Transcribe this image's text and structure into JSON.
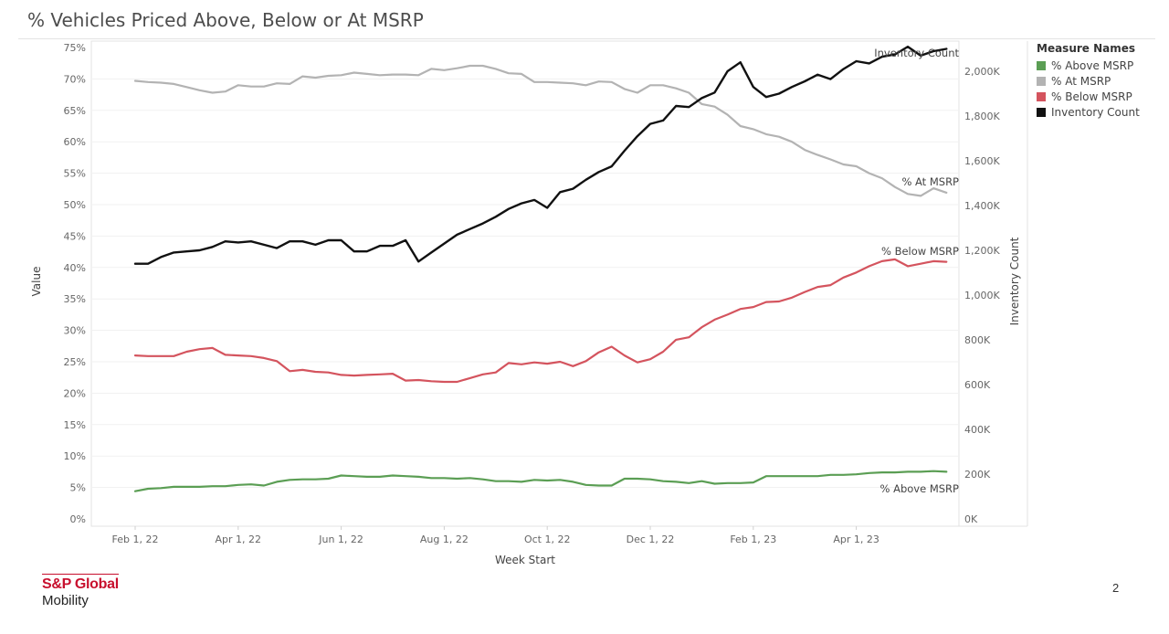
{
  "page": {
    "title": "% Vehicles Priced Above, Below or At MSRP",
    "page_number": "2"
  },
  "logo": {
    "main": "S&P Global",
    "sub": "Mobility"
  },
  "legend": {
    "title": "Measure Names",
    "items": [
      {
        "label": "% Above MSRP",
        "color": "#5b9e54"
      },
      {
        "label": "% At MSRP",
        "color": "#b3b3b3"
      },
      {
        "label": "% Below MSRP",
        "color": "#d4545e"
      },
      {
        "label": "Inventory Count",
        "color": "#111111"
      }
    ]
  },
  "chart_data": {
    "type": "line",
    "title": "% Vehicles Priced Above, Below or At MSRP",
    "xlabel": "Week Start",
    "ylabel": "Value",
    "y2label": "Inventory Count",
    "x_ticks": [
      "Feb 1, 22",
      "Apr 1, 22",
      "Jun 1, 22",
      "Aug 1, 22",
      "Oct 1, 22",
      "Dec 1, 22",
      "Feb 1, 23",
      "Apr 1, 23"
    ],
    "y_ticks": [
      "75%",
      "70%",
      "65%",
      "60%",
      "55%",
      "50%",
      "45%",
      "40%",
      "35%",
      "30%",
      "25%",
      "20%",
      "15%",
      "10%",
      "5%",
      "0%"
    ],
    "y2_ticks": [
      "2,000K",
      "1,800K",
      "1,600K",
      "1,400K",
      "1,200K",
      "1,000K",
      "800K",
      "600K",
      "400K",
      "200K",
      "0K"
    ],
    "ylim": [
      0,
      75
    ],
    "y2lim": [
      0,
      2100000
    ],
    "grid": "horizontal",
    "legend_position": "right",
    "x_months": [
      0,
      0.25,
      0.5,
      0.75,
      1,
      1.25,
      1.5,
      1.75,
      2,
      2.25,
      2.5,
      2.75,
      3,
      3.25,
      3.5,
      3.75,
      4,
      4.25,
      4.5,
      4.75,
      5,
      5.25,
      5.5,
      5.75,
      6,
      6.25,
      6.5,
      6.75,
      7,
      7.25,
      7.5,
      7.75,
      8,
      8.25,
      8.5,
      8.75,
      9,
      9.25,
      9.5,
      9.75,
      10,
      10.25,
      10.5,
      10.75,
      11,
      11.25,
      11.5,
      11.75,
      12,
      12.25,
      12.5,
      12.75,
      13,
      13.25,
      13.5,
      13.75,
      14,
      14.25,
      14.5,
      14.75,
      15,
      15.25,
      15.5,
      15.75
    ],
    "series": [
      {
        "name": "% At MSRP",
        "color": "#b3b3b3",
        "axis": "left",
        "label": "% At MSRP",
        "values": [
          69.7,
          69.5,
          69.4,
          69.2,
          68.7,
          68.2,
          67.8,
          68,
          69,
          68.8,
          68.8,
          69.3,
          69.2,
          70.4,
          70.2,
          70.5,
          70.6,
          71,
          70.8,
          70.6,
          70.7,
          70.7,
          70.6,
          71.6,
          71.4,
          71.7,
          72.1,
          72.1,
          71.6,
          70.9,
          70.8,
          69.5,
          69.5,
          69.4,
          69.3,
          69,
          69.6,
          69.5,
          68.4,
          67.8,
          69,
          69,
          68.5,
          67.8,
          66,
          65.6,
          64.3,
          62.5,
          62,
          61.2,
          60.8,
          60,
          58.7,
          57.9,
          57.2,
          56.4,
          56.1,
          55,
          54.2,
          52.8,
          51.7,
          51.4,
          52.6,
          51.9
        ]
      },
      {
        "name": "% Below MSRP",
        "color": "#d4545e",
        "axis": "left",
        "label": "% Below MSRP",
        "values": [
          26,
          25.9,
          25.9,
          25.9,
          26.6,
          27,
          27.2,
          26.1,
          26,
          25.9,
          25.6,
          25.1,
          23.5,
          23.7,
          23.4,
          23.3,
          22.9,
          22.8,
          22.9,
          23,
          23.1,
          22,
          22.1,
          21.9,
          21.8,
          21.8,
          22.4,
          23,
          23.3,
          24.8,
          24.6,
          24.9,
          24.7,
          25,
          24.3,
          25.1,
          26.5,
          27.4,
          26,
          24.9,
          25.4,
          26.6,
          28.5,
          28.9,
          30.5,
          31.7,
          32.5,
          33.4,
          33.7,
          34.5,
          34.6,
          35.2,
          36.1,
          36.9,
          37.2,
          38.4,
          39.2,
          40.2,
          41,
          41.3,
          40.2,
          40.6,
          41,
          40.9
        ]
      },
      {
        "name": "% Above MSRP",
        "color": "#5b9e54",
        "axis": "left",
        "label": "% Above MSRP",
        "values": [
          4.4,
          4.8,
          4.9,
          5.1,
          5.1,
          5.1,
          5.2,
          5.2,
          5.4,
          5.5,
          5.3,
          5.9,
          6.2,
          6.3,
          6.3,
          6.4,
          6.9,
          6.8,
          6.7,
          6.7,
          6.9,
          6.8,
          6.7,
          6.5,
          6.5,
          6.4,
          6.5,
          6.3,
          6,
          6,
          5.9,
          6.2,
          6.1,
          6.2,
          5.9,
          5.4,
          5.3,
          5.3,
          6.4,
          6.4,
          6.3,
          6,
          5.9,
          5.7,
          6,
          5.6,
          5.7,
          5.7,
          5.8,
          6.8,
          6.8,
          6.8,
          6.8,
          6.8,
          7,
          7,
          7.1,
          7.3,
          7.4,
          7.4,
          7.5,
          7.5,
          7.6,
          7.5
        ]
      },
      {
        "name": "Inventory Count",
        "color": "#111111",
        "axis": "right",
        "label": "Inventory Count",
        "values": [
          1140000,
          1140000,
          1170000,
          1190000,
          1195000,
          1200000,
          1215000,
          1240000,
          1235000,
          1240000,
          1225000,
          1210000,
          1240000,
          1240000,
          1225000,
          1245000,
          1245000,
          1195000,
          1195000,
          1220000,
          1220000,
          1245000,
          1150000,
          1190000,
          1230000,
          1270000,
          1295000,
          1320000,
          1350000,
          1385000,
          1410000,
          1425000,
          1390000,
          1460000,
          1475000,
          1515000,
          1550000,
          1575000,
          1645000,
          1710000,
          1765000,
          1780000,
          1845000,
          1840000,
          1880000,
          1905000,
          2000000,
          2040000,
          1930000,
          1885000,
          1900000,
          1930000,
          1955000,
          1985000,
          1965000,
          2010000,
          2045000,
          2035000,
          2065000,
          2075000,
          2110000,
          2070000,
          2090000,
          2100000
        ]
      }
    ]
  }
}
